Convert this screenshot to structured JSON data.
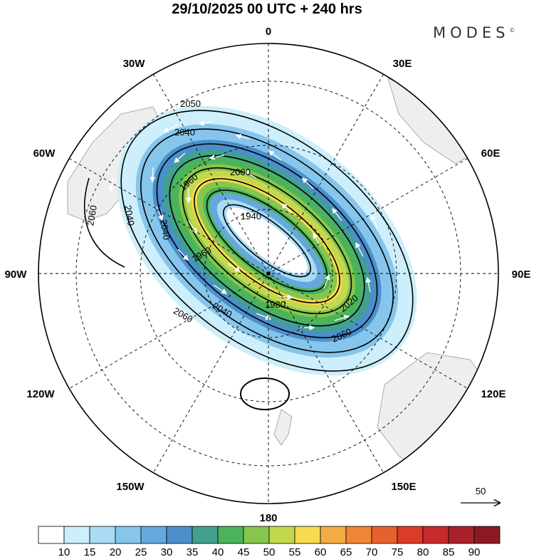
{
  "title": "29/10/2025  00 UTC  + 240 hrs",
  "brand": "MODES",
  "brand_mark": "©",
  "longitude_labels": {
    "top": "0",
    "top_left": "30W",
    "top_right": "30E",
    "upper_left": "60W",
    "upper_right": "60E",
    "left": "90W",
    "right": "90E",
    "lower_left": "120W",
    "lower_right": "120E",
    "bottom_left": "150W",
    "bottom_right": "150E",
    "bottom": "180"
  },
  "contour_labels": [
    "2050",
    "2040",
    "2000",
    "1960",
    "1940",
    "2060",
    "2040",
    "2040",
    "1960",
    "1980",
    "2020",
    "2060",
    "2060",
    "2040"
  ],
  "reference_vector": "50",
  "colorbar": {
    "ticks": [
      "10",
      "15",
      "20",
      "25",
      "30",
      "35",
      "40",
      "45",
      "50",
      "55",
      "60",
      "65",
      "70",
      "75",
      "80",
      "85",
      "90"
    ],
    "colors": [
      "#ffffff",
      "#cdeefb",
      "#a9dcf4",
      "#86c6ec",
      "#64a9dd",
      "#4b8fcb",
      "#42a18c",
      "#4cb35a",
      "#86c64e",
      "#c4d84e",
      "#f7da4f",
      "#f2ac45",
      "#ee8636",
      "#e6612e",
      "#dc3b2a",
      "#c62a2c",
      "#a8202a",
      "#8c1a22"
    ]
  },
  "colors": {
    "land": "#eeeeee",
    "coast": "#999999"
  }
}
